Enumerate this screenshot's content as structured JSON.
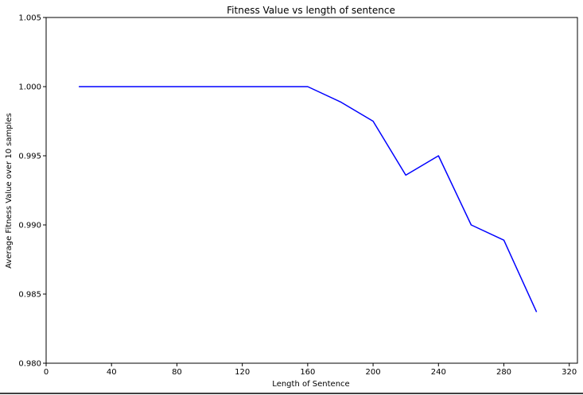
{
  "chart_data": {
    "type": "line",
    "title": "Fitness Value vs length of sentence",
    "xlabel": "Length of Sentence",
    "ylabel": "Average Fitness Value over 10 samples",
    "xlim": [
      0,
      325
    ],
    "ylim": [
      0.98,
      1.005
    ],
    "x_ticks": [
      0,
      40,
      80,
      120,
      160,
      200,
      240,
      280,
      320
    ],
    "y_ticks": [
      0.98,
      0.985,
      0.99,
      0.995,
      1.0,
      1.005
    ],
    "x_tick_labels": [
      "0",
      "40",
      "80",
      "120",
      "160",
      "200",
      "240",
      "280",
      "320"
    ],
    "y_tick_labels": [
      "0.980",
      "0.985",
      "0.990",
      "0.995",
      "1.000",
      "1.005"
    ],
    "grid": false,
    "series": [
      {
        "color": "#0000ff",
        "x": [
          20,
          40,
          60,
          80,
          100,
          120,
          140,
          160,
          180,
          200,
          220,
          240,
          260,
          280,
          300
        ],
        "y": [
          1.0,
          1.0,
          1.0,
          1.0,
          1.0,
          1.0,
          1.0,
          1.0,
          0.9989,
          0.9975,
          0.9936,
          0.995,
          0.99,
          0.9889,
          0.9837
        ]
      }
    ]
  }
}
